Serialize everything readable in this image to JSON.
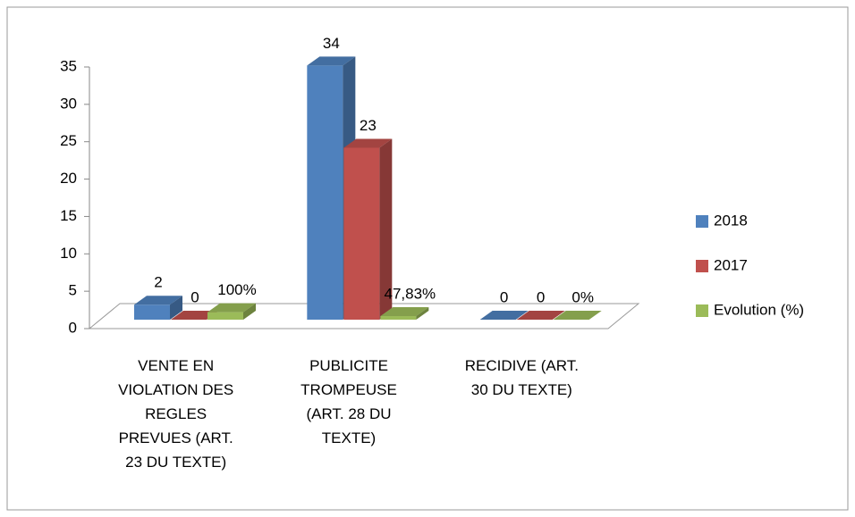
{
  "chart_data": {
    "type": "bar3d",
    "categories": [
      "VENTE  EN VIOLATION DES REGLES PREVUES (ART. 23 DU TEXTE)",
      "PUBLICITE TROMPEUSE (ART. 28 DU TEXTE)",
      "RECIDIVE (ART. 30 DU TEXTE)"
    ],
    "series": [
      {
        "name": "2018",
        "color": "#4f81bd",
        "values": [
          2,
          34,
          0
        ]
      },
      {
        "name": "2017",
        "color": "#c0504d",
        "values": [
          0,
          23,
          0
        ]
      },
      {
        "name": "Evolution (%)",
        "color": "#9bbb59",
        "values": [
          1,
          0.4783,
          0
        ],
        "value_labels": [
          "100%",
          "47,83%",
          "0%"
        ]
      }
    ],
    "ylim": [
      0,
      35
    ],
    "yticks": [
      0,
      5,
      10,
      15,
      20,
      25,
      30,
      35
    ],
    "legend": "right"
  }
}
